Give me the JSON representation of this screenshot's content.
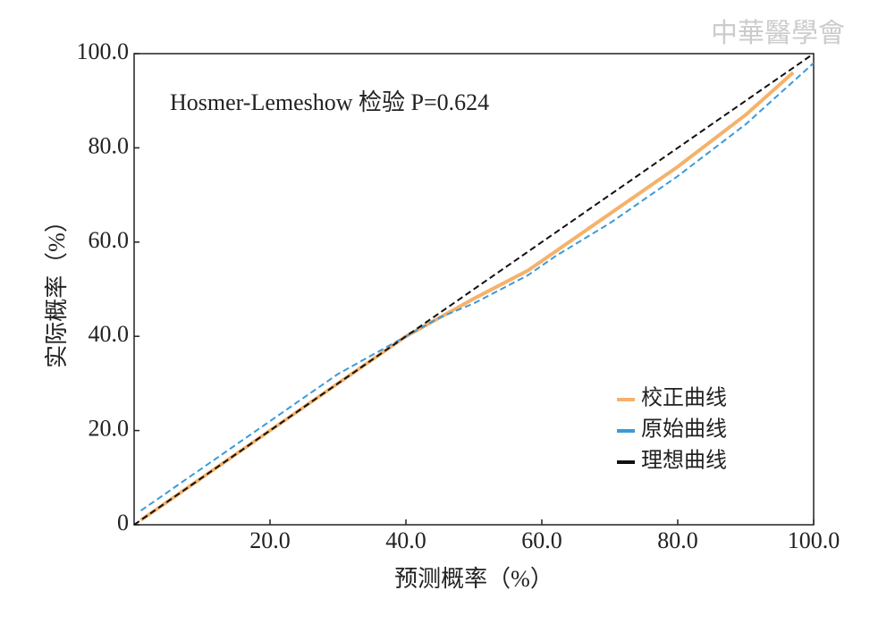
{
  "chart_data": {
    "type": "line",
    "watermark": "中華醫學會",
    "annotation": "Hosmer-Lemeshow 检验 P=0.624",
    "x_label": "预测概率（%）",
    "y_label": "实际概率（%）",
    "xlim": [
      0,
      100
    ],
    "ylim": [
      0,
      100
    ],
    "xticks": [
      {
        "value": 20,
        "label": "20.0"
      },
      {
        "value": 40,
        "label": "40.0"
      },
      {
        "value": 60,
        "label": "60.0"
      },
      {
        "value": 80,
        "label": "80.0"
      },
      {
        "value": 100,
        "label": "100.0"
      }
    ],
    "yticks": [
      0,
      {
        "value": 20,
        "label": "20.0"
      },
      {
        "value": 40,
        "label": "40.0"
      },
      {
        "value": 60,
        "label": "60.0"
      },
      {
        "value": 80,
        "label": "80.0"
      },
      {
        "value": 100,
        "label": "100.0"
      }
    ],
    "legend": "lower right",
    "series": [
      {
        "name": "校正曲线",
        "color": "#f5b26b",
        "style": "solid",
        "x": [
          1,
          10,
          20,
          30,
          40,
          45,
          50,
          58,
          62,
          70,
          80,
          90,
          97
        ],
        "values": [
          1,
          10,
          20,
          30,
          40,
          44,
          48,
          54,
          58,
          66,
          76,
          87,
          96
        ]
      },
      {
        "name": "原始曲线",
        "color": "#3a9ad9",
        "style": "dashed",
        "x": [
          1,
          10,
          20,
          30,
          40,
          45,
          50,
          58,
          62,
          70,
          80,
          90,
          100
        ],
        "values": [
          3,
          12,
          22,
          32,
          40,
          44,
          47,
          53,
          57,
          64,
          74,
          85,
          98
        ]
      },
      {
        "name": "理想曲线",
        "color": "#111111",
        "style": "dashed",
        "x": [
          0,
          100
        ],
        "values": [
          0,
          100
        ]
      }
    ]
  }
}
